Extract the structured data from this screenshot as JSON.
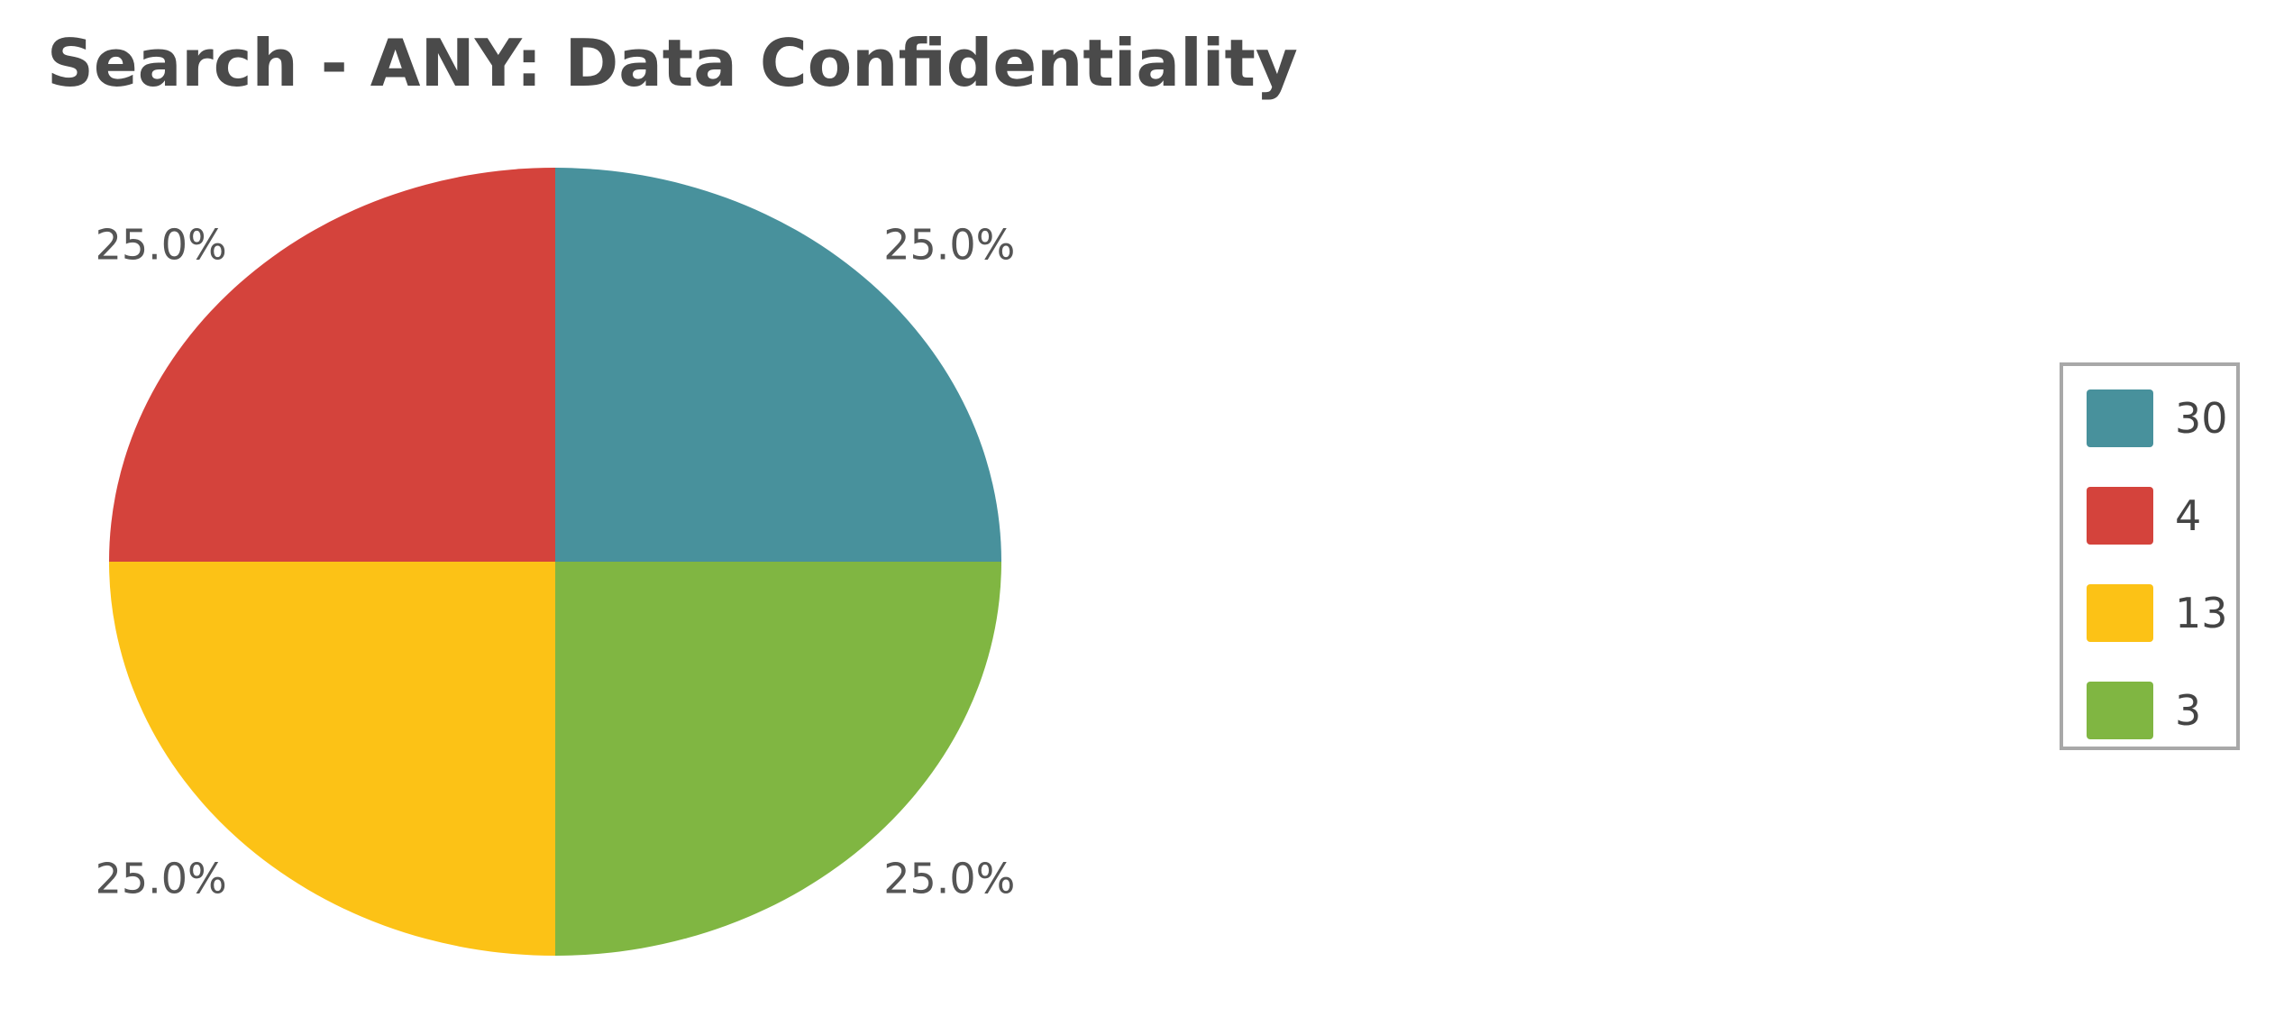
{
  "chart_data": {
    "type": "pie",
    "title": "Search - ANY: Data Confidentiality",
    "slices": [
      {
        "name": "30",
        "value": 1,
        "label": "25.0%",
        "color": "#48919c"
      },
      {
        "name": "3",
        "value": 1,
        "label": "25.0%",
        "color": "#80b642"
      },
      {
        "name": "13",
        "value": 1,
        "label": "25.0%",
        "color": "#fcc216"
      },
      {
        "name": "4",
        "value": 1,
        "label": "25.0%",
        "color": "#d4433c"
      }
    ],
    "legend": {
      "position": "right",
      "items": [
        {
          "label": "30",
          "color": "#48919c"
        },
        {
          "label": "4",
          "color": "#d4433c"
        },
        {
          "label": "13",
          "color": "#fcc216"
        },
        {
          "label": "3",
          "color": "#80b642"
        }
      ]
    }
  }
}
